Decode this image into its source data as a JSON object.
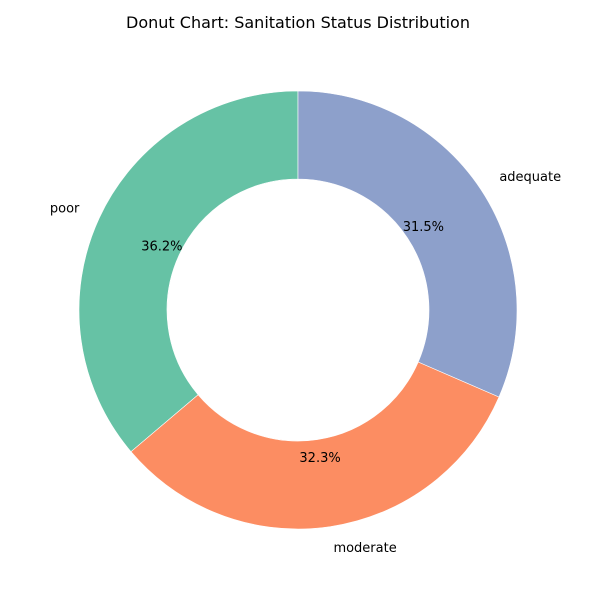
{
  "chart_data": {
    "type": "pie",
    "variant": "donut",
    "title": "Donut Chart: Sanitation Status Distribution",
    "categories": [
      "poor",
      "moderate",
      "adequate"
    ],
    "values": [
      36.2,
      32.3,
      31.5
    ],
    "value_labels": [
      "36.2%",
      "32.3%",
      "31.5%"
    ],
    "colors": [
      "#66c2a5",
      "#fc8d62",
      "#8da0cb"
    ],
    "start_angle_deg": 90,
    "direction": "counterclockwise",
    "legend": "none"
  }
}
